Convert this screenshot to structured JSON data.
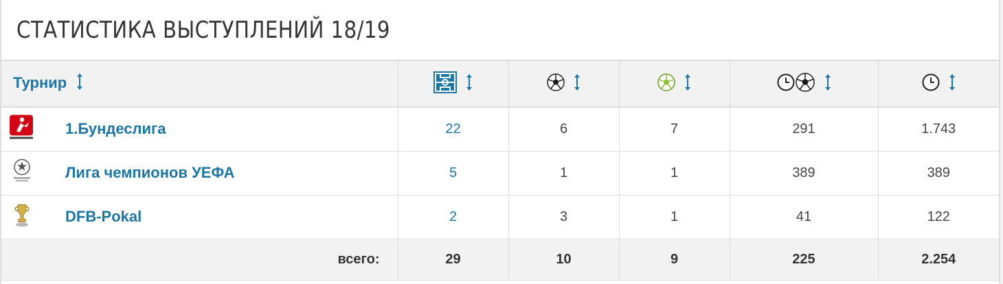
{
  "header": {
    "title": "СТАТИСТИКА ВЫСТУПЛЕНИЙ 18/19"
  },
  "table": {
    "columns": [
      {
        "label": "Турнир",
        "icon": "sort-arrows-icon"
      },
      {
        "icon": "pitch-icon",
        "meaning": "appearances"
      },
      {
        "icon": "ball-icon",
        "meaning": "goals"
      },
      {
        "icon": "assist-ball-icon",
        "meaning": "assists"
      },
      {
        "icon": "clock-ball-icon",
        "meaning": "minutes per goal"
      },
      {
        "icon": "clock-icon",
        "meaning": "minutes played"
      }
    ],
    "rows": [
      {
        "competition": "1.Бундеслига",
        "icon": "bundesliga-logo-icon",
        "apps": "22",
        "goals": "6",
        "assists": "7",
        "min_per_goal": "291",
        "minutes": "1.743"
      },
      {
        "competition": "Лига чемпионов УЕФА",
        "icon": "champions-league-logo-icon",
        "apps": "5",
        "goals": "1",
        "assists": "1",
        "min_per_goal": "389",
        "minutes": "389"
      },
      {
        "competition": "DFB-Pokal",
        "icon": "dfb-pokal-logo-icon",
        "apps": "2",
        "goals": "3",
        "assists": "1",
        "min_per_goal": "41",
        "minutes": "122"
      }
    ],
    "totals": {
      "label": "всего:",
      "apps": "29",
      "goals": "10",
      "assists": "9",
      "min_per_goal": "225",
      "minutes": "2.254"
    }
  },
  "colors": {
    "link": "#1d75a3",
    "header_bg": "#f2f2f2",
    "border": "#dcdcdc",
    "assist_green": "#8fbf3a"
  }
}
